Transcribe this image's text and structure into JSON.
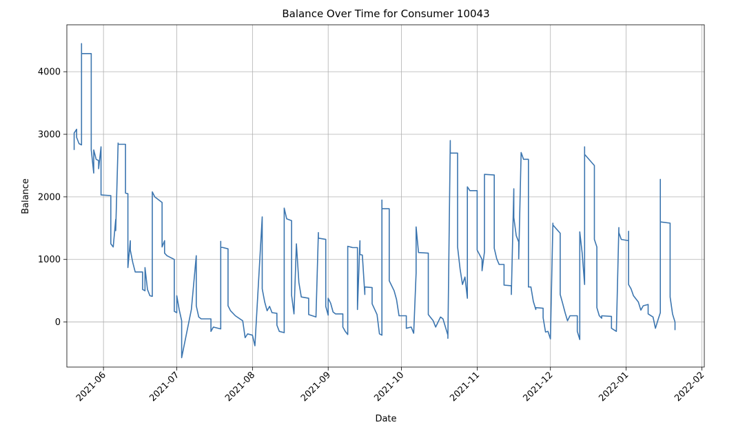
{
  "chart_data": {
    "type": "line",
    "title": "Balance Over Time for Consumer 10043",
    "xlabel": "Date",
    "ylabel": "Balance",
    "xlim": [
      "2021-05-17",
      "2022-02-02"
    ],
    "ylim": [
      -720,
      4750
    ],
    "x_ticks": [
      "2021-06",
      "2021-07",
      "2021-08",
      "2021-09",
      "2021-10",
      "2021-11",
      "2021-12",
      "2022-01",
      "2022-02"
    ],
    "y_ticks": [
      0,
      1000,
      2000,
      3000,
      4000
    ],
    "grid": true,
    "colors": {
      "series": "#3b75af"
    },
    "series": [
      {
        "points": [
          [
            "2021-05-20",
            2750
          ],
          [
            "2021-05-20",
            3020
          ],
          [
            "2021-05-21",
            3080
          ],
          [
            "2021-05-21",
            2950
          ],
          [
            "2021-05-22",
            2850
          ],
          [
            "2021-05-23",
            2830
          ],
          [
            "2021-05-23",
            4450
          ],
          [
            "2021-05-23",
            4290
          ],
          [
            "2021-05-27",
            4290
          ],
          [
            "2021-05-27",
            2750
          ],
          [
            "2021-05-28",
            2380
          ],
          [
            "2021-05-28",
            2750
          ],
          [
            "2021-05-29",
            2600
          ],
          [
            "2021-05-30",
            2580
          ],
          [
            "2021-05-30",
            2450
          ],
          [
            "2021-05-31",
            2800
          ],
          [
            "2021-05-31",
            2030
          ],
          [
            "2021-06-04",
            2020
          ],
          [
            "2021-06-04",
            1250
          ],
          [
            "2021-06-05",
            1200
          ],
          [
            "2021-06-06",
            1640
          ],
          [
            "2021-06-06",
            1460
          ],
          [
            "2021-06-07",
            2860
          ],
          [
            "2021-06-07",
            2840
          ],
          [
            "2021-06-10",
            2840
          ],
          [
            "2021-06-10",
            2060
          ],
          [
            "2021-06-11",
            2050
          ],
          [
            "2021-06-11",
            870
          ],
          [
            "2021-06-12",
            1300
          ],
          [
            "2021-06-12",
            1150
          ],
          [
            "2021-06-13",
            950
          ],
          [
            "2021-06-14",
            800
          ],
          [
            "2021-06-17",
            800
          ],
          [
            "2021-06-17",
            520
          ],
          [
            "2021-06-18",
            500
          ],
          [
            "2021-06-18",
            870
          ],
          [
            "2021-06-19",
            520
          ],
          [
            "2021-06-20",
            420
          ],
          [
            "2021-06-21",
            410
          ],
          [
            "2021-06-21",
            2080
          ],
          [
            "2021-06-22",
            2000
          ],
          [
            "2021-06-25",
            1910
          ],
          [
            "2021-06-25",
            1200
          ],
          [
            "2021-06-26",
            1300
          ],
          [
            "2021-06-26",
            1100
          ],
          [
            "2021-06-27",
            1060
          ],
          [
            "2021-06-30",
            1000
          ],
          [
            "2021-06-30",
            170
          ],
          [
            "2021-07-01",
            150
          ],
          [
            "2021-07-01",
            420
          ],
          [
            "2021-07-02",
            200
          ],
          [
            "2021-07-03",
            20
          ],
          [
            "2021-07-03",
            -570
          ],
          [
            "2021-07-07",
            200
          ],
          [
            "2021-07-09",
            1060
          ],
          [
            "2021-07-09",
            260
          ],
          [
            "2021-07-10",
            80
          ],
          [
            "2021-07-11",
            50
          ],
          [
            "2021-07-15",
            50
          ],
          [
            "2021-07-15",
            -150
          ],
          [
            "2021-07-16",
            -80
          ],
          [
            "2021-07-19",
            -110
          ],
          [
            "2021-07-19",
            1290
          ],
          [
            "2021-07-19",
            1200
          ],
          [
            "2021-07-22",
            1170
          ],
          [
            "2021-07-22",
            260
          ],
          [
            "2021-07-23",
            180
          ],
          [
            "2021-07-25",
            100
          ],
          [
            "2021-07-28",
            20
          ],
          [
            "2021-07-29",
            -250
          ],
          [
            "2021-07-30",
            -190
          ],
          [
            "2021-08-01",
            -210
          ],
          [
            "2021-08-02",
            -380
          ],
          [
            "2021-08-05",
            1680
          ],
          [
            "2021-08-05",
            530
          ],
          [
            "2021-08-06",
            320
          ],
          [
            "2021-08-07",
            180
          ],
          [
            "2021-08-08",
            250
          ],
          [
            "2021-08-09",
            150
          ],
          [
            "2021-08-11",
            140
          ],
          [
            "2021-08-11",
            -50
          ],
          [
            "2021-08-12",
            -150
          ],
          [
            "2021-08-14",
            -170
          ],
          [
            "2021-08-14",
            1820
          ],
          [
            "2021-08-15",
            1650
          ],
          [
            "2021-08-17",
            1620
          ],
          [
            "2021-08-17",
            430
          ],
          [
            "2021-08-18",
            130
          ],
          [
            "2021-08-19",
            1250
          ],
          [
            "2021-08-20",
            630
          ],
          [
            "2021-08-21",
            400
          ],
          [
            "2021-08-24",
            380
          ],
          [
            "2021-08-24",
            120
          ],
          [
            "2021-08-27",
            80
          ],
          [
            "2021-08-28",
            1430
          ],
          [
            "2021-08-28",
            1340
          ],
          [
            "2021-08-31",
            1320
          ],
          [
            "2021-08-31",
            250
          ],
          [
            "2021-09-01",
            110
          ],
          [
            "2021-09-01",
            380
          ],
          [
            "2021-09-02",
            300
          ],
          [
            "2021-09-03",
            160
          ],
          [
            "2021-09-04",
            130
          ],
          [
            "2021-09-07",
            130
          ],
          [
            "2021-09-07",
            -80
          ],
          [
            "2021-09-08",
            -150
          ],
          [
            "2021-09-09",
            -200
          ],
          [
            "2021-09-09",
            1210
          ],
          [
            "2021-09-11",
            1190
          ],
          [
            "2021-09-13",
            1190
          ],
          [
            "2021-09-13",
            200
          ],
          [
            "2021-09-14",
            1300
          ],
          [
            "2021-09-14",
            1080
          ],
          [
            "2021-09-15",
            1070
          ],
          [
            "2021-09-16",
            440
          ],
          [
            "2021-09-16",
            560
          ],
          [
            "2021-09-19",
            550
          ],
          [
            "2021-09-19",
            290
          ],
          [
            "2021-09-21",
            120
          ],
          [
            "2021-09-22",
            -190
          ],
          [
            "2021-09-23",
            -210
          ],
          [
            "2021-09-23",
            1950
          ],
          [
            "2021-09-23",
            1810
          ],
          [
            "2021-09-26",
            1810
          ],
          [
            "2021-09-26",
            660
          ],
          [
            "2021-09-28",
            500
          ],
          [
            "2021-09-29",
            360
          ],
          [
            "2021-09-30",
            100
          ],
          [
            "2021-10-03",
            100
          ],
          [
            "2021-10-03",
            -100
          ],
          [
            "2021-10-05",
            -80
          ],
          [
            "2021-10-06",
            -180
          ],
          [
            "2021-10-07",
            780
          ],
          [
            "2021-10-07",
            1520
          ],
          [
            "2021-10-08",
            1110
          ],
          [
            "2021-10-12",
            1100
          ],
          [
            "2021-10-12",
            120
          ],
          [
            "2021-10-14",
            20
          ],
          [
            "2021-10-15",
            -80
          ],
          [
            "2021-10-17",
            80
          ],
          [
            "2021-10-18",
            50
          ],
          [
            "2021-10-20",
            -210
          ],
          [
            "2021-10-20",
            -260
          ],
          [
            "2021-10-21",
            2900
          ],
          [
            "2021-10-21",
            2700
          ],
          [
            "2021-10-24",
            2700
          ],
          [
            "2021-10-24",
            1200
          ],
          [
            "2021-10-25",
            850
          ],
          [
            "2021-10-26",
            600
          ],
          [
            "2021-10-27",
            720
          ],
          [
            "2021-10-28",
            380
          ],
          [
            "2021-10-28",
            2160
          ],
          [
            "2021-10-29",
            2100
          ],
          [
            "2021-11-01",
            2100
          ],
          [
            "2021-11-01",
            1150
          ],
          [
            "2021-11-03",
            1000
          ],
          [
            "2021-11-03",
            820
          ],
          [
            "2021-11-04",
            1120
          ],
          [
            "2021-11-04",
            2360
          ],
          [
            "2021-11-08",
            2350
          ],
          [
            "2021-11-08",
            1180
          ],
          [
            "2021-11-09",
            1010
          ],
          [
            "2021-11-10",
            920
          ],
          [
            "2021-11-12",
            920
          ],
          [
            "2021-11-12",
            590
          ],
          [
            "2021-11-15",
            580
          ],
          [
            "2021-11-15",
            440
          ],
          [
            "2021-11-16",
            2130
          ],
          [
            "2021-11-16",
            1670
          ],
          [
            "2021-11-17",
            1380
          ],
          [
            "2021-11-18",
            1280
          ],
          [
            "2021-11-18",
            1010
          ],
          [
            "2021-11-19",
            2710
          ],
          [
            "2021-11-20",
            2600
          ],
          [
            "2021-11-22",
            2600
          ],
          [
            "2021-11-22",
            560
          ],
          [
            "2021-11-23",
            560
          ],
          [
            "2021-11-24",
            330
          ],
          [
            "2021-11-25",
            200
          ],
          [
            "2021-11-25",
            230
          ],
          [
            "2021-11-28",
            220
          ],
          [
            "2021-11-28",
            70
          ],
          [
            "2021-11-29",
            -160
          ],
          [
            "2021-11-30",
            -150
          ],
          [
            "2021-12-01",
            -270
          ],
          [
            "2021-12-02",
            1580
          ],
          [
            "2021-12-02",
            1550
          ],
          [
            "2021-12-05",
            1420
          ],
          [
            "2021-12-05",
            440
          ],
          [
            "2021-12-06",
            300
          ],
          [
            "2021-12-07",
            150
          ],
          [
            "2021-12-08",
            20
          ],
          [
            "2021-12-09",
            100
          ],
          [
            "2021-12-12",
            100
          ],
          [
            "2021-12-12",
            -150
          ],
          [
            "2021-12-13",
            -280
          ],
          [
            "2021-12-13",
            1440
          ],
          [
            "2021-12-14",
            1100
          ],
          [
            "2021-12-15",
            600
          ],
          [
            "2021-12-15",
            2800
          ],
          [
            "2021-12-15",
            2680
          ],
          [
            "2021-12-19",
            2500
          ],
          [
            "2021-12-19",
            1320
          ],
          [
            "2021-12-20",
            1200
          ],
          [
            "2021-12-20",
            230
          ],
          [
            "2021-12-21",
            100
          ],
          [
            "2021-12-22",
            60
          ],
          [
            "2021-12-22",
            100
          ],
          [
            "2021-12-26",
            90
          ],
          [
            "2021-12-26",
            -100
          ],
          [
            "2021-12-28",
            -150
          ],
          [
            "2021-12-29",
            1510
          ],
          [
            "2021-12-29",
            1430
          ],
          [
            "2021-12-30",
            1320
          ],
          [
            "2022-01-02",
            1300
          ],
          [
            "2022-01-02",
            1450
          ],
          [
            "2022-01-02",
            600
          ],
          [
            "2022-01-03",
            530
          ],
          [
            "2022-01-04",
            420
          ],
          [
            "2022-01-06",
            320
          ],
          [
            "2022-01-07",
            190
          ],
          [
            "2022-01-08",
            260
          ],
          [
            "2022-01-10",
            280
          ],
          [
            "2022-01-10",
            130
          ],
          [
            "2022-01-12",
            80
          ],
          [
            "2022-01-13",
            -100
          ],
          [
            "2022-01-14",
            30
          ],
          [
            "2022-01-15",
            150
          ],
          [
            "2022-01-15",
            2280
          ],
          [
            "2022-01-15",
            1600
          ],
          [
            "2022-01-19",
            1580
          ],
          [
            "2022-01-19",
            400
          ],
          [
            "2022-01-20",
            130
          ],
          [
            "2022-01-21",
            0
          ],
          [
            "2022-01-21",
            -130
          ]
        ]
      }
    ]
  }
}
